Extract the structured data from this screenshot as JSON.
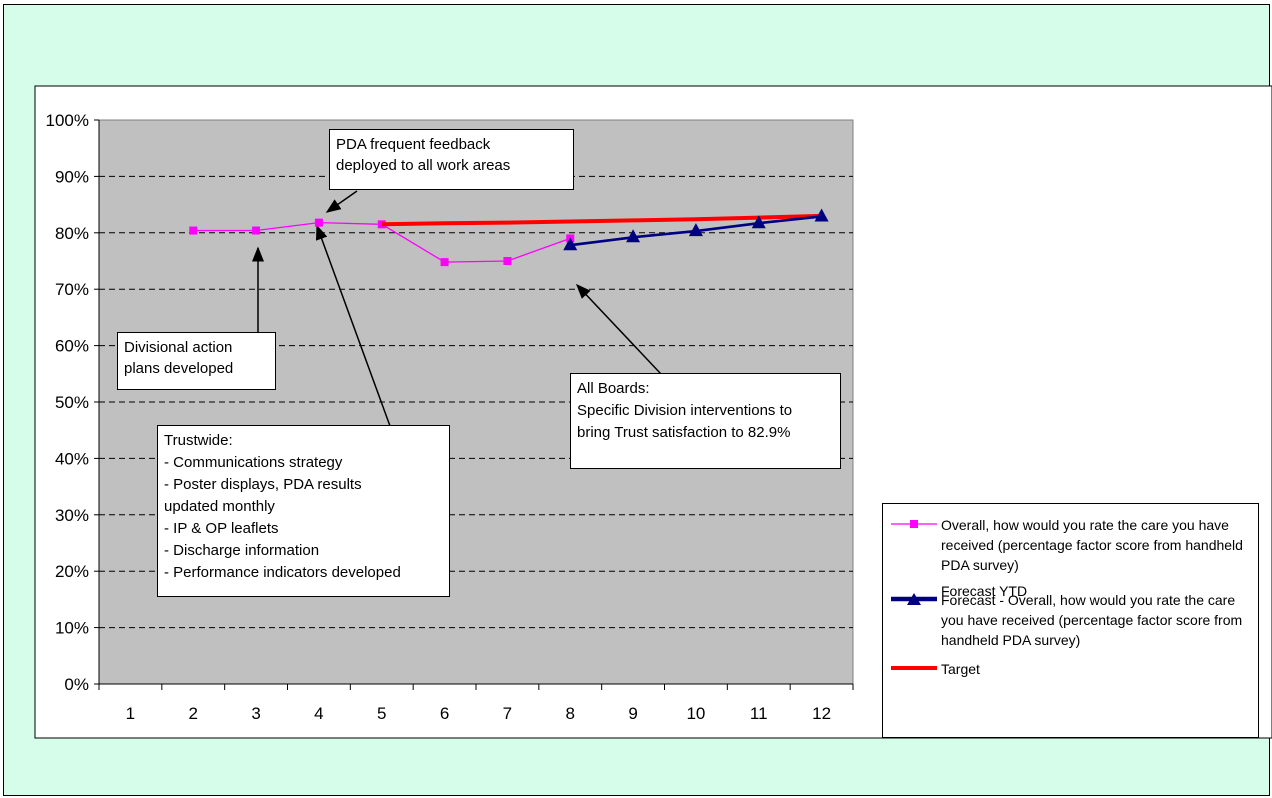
{
  "chart_data": {
    "type": "line",
    "categories": [
      "1",
      "2",
      "3",
      "4",
      "5",
      "6",
      "7",
      "8",
      "9",
      "10",
      "11",
      "12"
    ],
    "ylim": [
      0,
      100
    ],
    "y_ticks": [
      "0%",
      "10%",
      "20%",
      "30%",
      "40%",
      "50%",
      "60%",
      "70%",
      "80%",
      "90%",
      "100%"
    ],
    "grid": "dashed horizontal",
    "legend_position": "right",
    "series": [
      {
        "name": "Overall, how would you rate the care you have received (percentage factor score from handheld PDA survey)",
        "color": "#ff00ff",
        "marker": "square",
        "values": [
          null,
          80.4,
          80.4,
          81.8,
          81.5,
          74.8,
          75.0,
          79.0,
          null,
          null,
          null,
          null
        ]
      },
      {
        "name": "Forecast - Overall, how would you rate the care you have received (percentage factor score from handheld PDA survey)",
        "color": "#000080",
        "marker": "triangle",
        "values": [
          null,
          null,
          null,
          null,
          null,
          null,
          null,
          77.8,
          79.2,
          80.3,
          81.7,
          82.9
        ]
      },
      {
        "name": "Forecast YTD",
        "color": "#000080",
        "marker": "none",
        "values": [
          null,
          null,
          null,
          null,
          null,
          null,
          null,
          null,
          null,
          null,
          null,
          null
        ]
      },
      {
        "name": "Target",
        "color": "#ff0000",
        "marker": "none",
        "values": [
          null,
          null,
          null,
          null,
          81.5,
          81.7,
          81.8,
          82.0,
          82.2,
          82.4,
          82.7,
          83.0
        ]
      }
    ],
    "annotations": {
      "pda": [
        "PDA frequent feedback",
        "deployed to all work areas"
      ],
      "divisional": [
        "Divisional action",
        "plans developed"
      ],
      "trustwide": [
        "Trustwide:",
        "- Communications strategy",
        "- Poster displays, PDA results",
        "updated monthly",
        "- IP & OP leaflets",
        "- Discharge information",
        "- Performance indicators developed"
      ],
      "boards": [
        "All Boards:",
        "Specific Division interventions to",
        "bring Trust satisfaction to 82.9%"
      ]
    }
  }
}
